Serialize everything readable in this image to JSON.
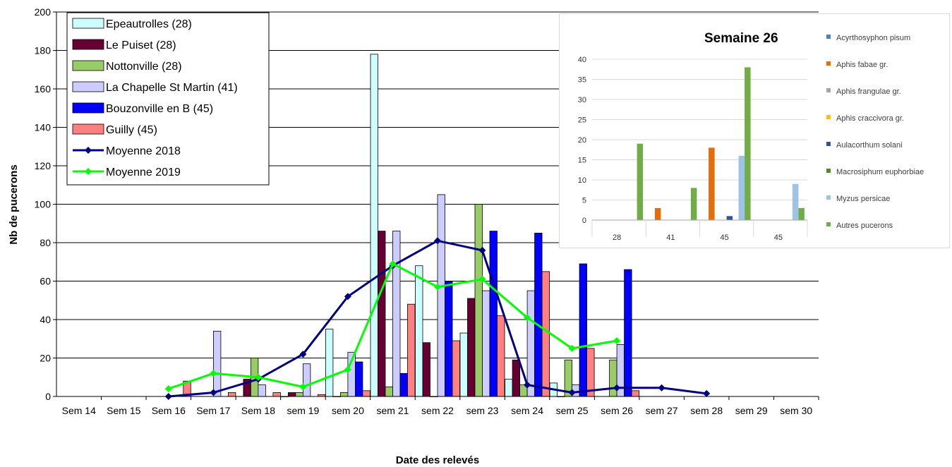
{
  "chart_data": [
    {
      "type": "bar",
      "title": "",
      "xlabel": "Date des relevés",
      "ylabel": "Nb de pucerons",
      "ylim": [
        0,
        200
      ],
      "yticks": [
        0,
        20,
        40,
        60,
        80,
        100,
        120,
        140,
        160,
        180,
        200
      ],
      "grid": true,
      "legend_position": "top-left",
      "categories": [
        "Sem 14",
        "Sem 15",
        "Sem 16",
        "Sem 17",
        "Sem 18",
        "sem 19",
        "sem 20",
        "sem 21",
        "sem 22",
        "sem 23",
        "sem 24",
        "sem 25",
        "sem 26",
        "sem 27",
        "sem 28",
        "sem 29",
        "sem 30"
      ],
      "series": [
        {
          "name": "Epeautrolles (28)",
          "kind": "bar",
          "color": "#ccffff",
          "values": [
            null,
            null,
            null,
            null,
            null,
            0,
            35,
            178,
            68,
            33,
            9,
            7,
            null,
            null,
            null,
            null,
            null
          ]
        },
        {
          "name": "Le Puiset (28)",
          "kind": "bar",
          "color": "#660033",
          "values": [
            null,
            null,
            null,
            null,
            9,
            2,
            0,
            86,
            28,
            51,
            19,
            0,
            null,
            null,
            null,
            null,
            null
          ]
        },
        {
          "name": "Nottonville (28)",
          "kind": "bar",
          "color": "#99cc66",
          "values": [
            null,
            null,
            null,
            null,
            20,
            2,
            2,
            5,
            0,
            100,
            6,
            19,
            19,
            null,
            null,
            null,
            null
          ]
        },
        {
          "name": "La Chapelle St Martin (41)",
          "kind": "bar",
          "color": "#ccccff",
          "values": [
            null,
            null,
            null,
            34,
            6,
            17,
            23,
            86,
            105,
            55,
            55,
            6,
            27,
            null,
            null,
            null,
            null
          ]
        },
        {
          "name": "Bouzonville en B (45)",
          "kind": "bar",
          "color": "#0000ff",
          "values": [
            null,
            null,
            null,
            null,
            null,
            null,
            18,
            12,
            60,
            86,
            85,
            69,
            66,
            null,
            null,
            null,
            null
          ]
        },
        {
          "name": "Guilly (45)",
          "kind": "bar",
          "color": "#ff8080",
          "values": [
            null,
            null,
            8,
            2,
            2,
            1,
            3,
            48,
            29,
            42,
            65,
            25,
            3,
            null,
            null,
            null,
            null
          ]
        },
        {
          "name": "Moyenne 2018",
          "kind": "line",
          "color": "#000080",
          "values": [
            null,
            null,
            0,
            2,
            9,
            22,
            52,
            68,
            81,
            76,
            6,
            2,
            4.5,
            4.5,
            1.5,
            null,
            null
          ]
        },
        {
          "name": "Moyenne 2019",
          "kind": "line",
          "color": "#00ff00",
          "values": [
            null,
            null,
            4,
            12,
            10,
            5,
            14,
            69,
            57,
            61,
            41,
            25,
            29,
            null,
            null,
            null,
            null
          ]
        }
      ]
    },
    {
      "type": "bar",
      "title": "Semaine 26",
      "ylim": [
        0,
        40
      ],
      "yticks": [
        0,
        5,
        10,
        15,
        20,
        25,
        30,
        35,
        40
      ],
      "grid": true,
      "legend_position": "right",
      "categories": [
        "28",
        "41",
        "45",
        "45"
      ],
      "series": [
        {
          "name": "Acyrthosyphon pisum",
          "color": "#4f81bd",
          "values": [
            0,
            0,
            0,
            0
          ]
        },
        {
          "name": "Aphis fabae gr.",
          "color": "#e46c0a",
          "values": [
            0,
            3,
            18,
            0
          ]
        },
        {
          "name": "Aphis frangulae gr.",
          "color": "#a5a5a5",
          "values": [
            0,
            0,
            0,
            0
          ]
        },
        {
          "name": "Aphis craccivora gr.",
          "color": "#ffc000",
          "values": [
            0,
            0,
            0,
            0
          ]
        },
        {
          "name": "Aulacorthum solani",
          "color": "#2f5597",
          "values": [
            0,
            0,
            1,
            0
          ]
        },
        {
          "name": "Macrosiphum euphorbiae",
          "color": "#4f8a2e",
          "values": [
            0,
            0,
            0,
            0
          ]
        },
        {
          "name": "Myzus persicae",
          "color": "#9dc3e6",
          "values": [
            0,
            0,
            16,
            9
          ]
        },
        {
          "name": "Autres pucerons",
          "color": "#70ad47",
          "values": [
            19,
            8,
            38,
            3
          ]
        }
      ]
    }
  ]
}
